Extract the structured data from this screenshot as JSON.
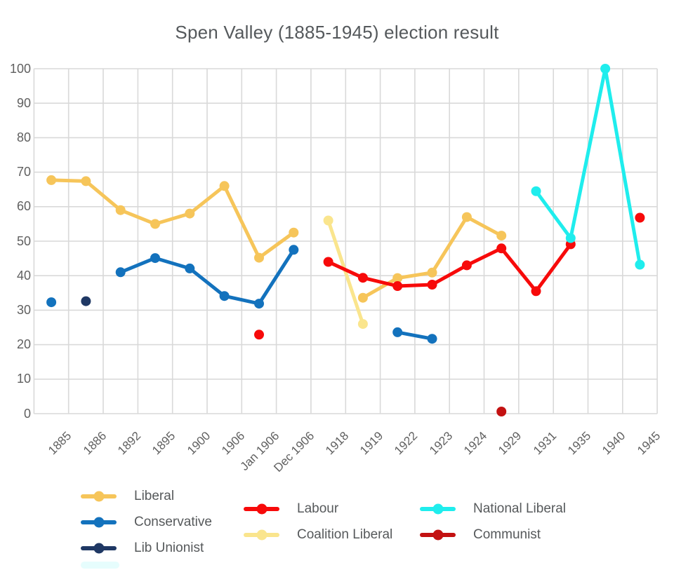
{
  "title": "Spen Valley (1885-1945) election result",
  "chart_data": {
    "type": "line",
    "title": "Spen Valley (1885-1945) election result",
    "categories": [
      "1885",
      "1886",
      "1892",
      "1895",
      "1900",
      "1906",
      "Jan 1906",
      "Dec 1906",
      "1918",
      "1919",
      "1922",
      "1923",
      "1924",
      "1929",
      "1931",
      "1935",
      "1940",
      "1945"
    ],
    "xlabel": "",
    "ylabel": "",
    "ylim": [
      0,
      100
    ],
    "yticks": [
      0,
      10,
      20,
      30,
      40,
      50,
      60,
      70,
      80,
      90,
      100
    ],
    "grid": true,
    "grid_color": "#D9D9D9",
    "legend_position": "bottom",
    "series": [
      {
        "name": "Liberal",
        "color": "#F6C55A",
        "values": [
          67.7,
          67.4,
          59,
          55,
          58,
          66,
          45.2,
          52.5,
          null,
          33.6,
          39.3,
          40.9,
          57,
          51.6,
          null,
          null,
          null,
          null
        ]
      },
      {
        "name": "Conservative",
        "color": "#1372BD",
        "values": [
          32.3,
          null,
          41,
          45.1,
          42.1,
          34.1,
          31.9,
          47.5,
          null,
          null,
          23.6,
          21.7,
          null,
          null,
          null,
          null,
          null,
          null
        ]
      },
      {
        "name": "Lib Unionist",
        "color": "#1F3864",
        "values": [
          null,
          32.6,
          null,
          null,
          null,
          null,
          null,
          null,
          null,
          null,
          null,
          null,
          null,
          null,
          null,
          null,
          null,
          null
        ]
      },
      {
        "name": "Labour",
        "color": "#F70A0A",
        "values": [
          null,
          null,
          null,
          null,
          null,
          null,
          22.9,
          null,
          44,
          39.4,
          37,
          37.4,
          43,
          47.9,
          35.5,
          49.1,
          null,
          56.8
        ]
      },
      {
        "name": "Coalition Liberal",
        "color": "#FAE58D",
        "values": [
          null,
          null,
          null,
          null,
          null,
          null,
          null,
          null,
          56,
          26,
          null,
          null,
          null,
          null,
          null,
          null,
          null,
          null
        ]
      },
      {
        "name": "National Liberal",
        "color": "#1FEDED",
        "values": [
          null,
          null,
          null,
          null,
          null,
          null,
          null,
          null,
          null,
          null,
          null,
          null,
          null,
          null,
          64.5,
          50.9,
          100,
          43.2
        ]
      },
      {
        "name": "Communist",
        "color": "#C31111",
        "values": [
          null,
          null,
          null,
          null,
          null,
          null,
          null,
          null,
          null,
          null,
          null,
          null,
          null,
          0.6,
          null,
          null,
          null,
          null
        ]
      }
    ]
  },
  "legend": {
    "columns": [
      {
        "items": [
          "Liberal",
          "Conservative",
          "Lib Unionist"
        ]
      },
      {
        "items": [
          "Labour",
          "Coalition Liberal"
        ]
      },
      {
        "items": [
          "National Liberal",
          "Communist"
        ]
      }
    ]
  }
}
